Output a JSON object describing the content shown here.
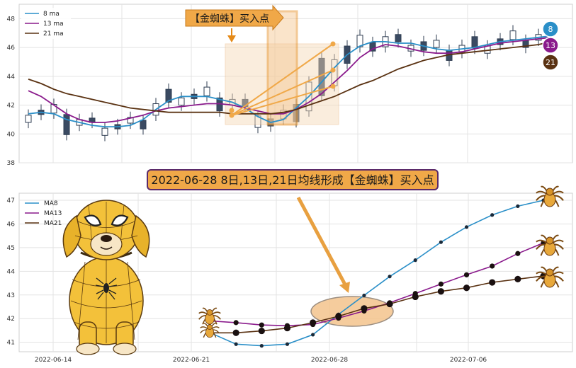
{
  "chart_data": [
    {
      "type": "line",
      "title": "",
      "xlabel": "",
      "ylabel": "",
      "ylim": [
        38,
        49
      ],
      "yticks": [
        38,
        40,
        42,
        44,
        46,
        48
      ],
      "grid": true,
      "legend_placement": "top-left",
      "candlesticks_shown": true,
      "series": [
        {
          "name": "8 ma",
          "color": "#2a8fc8",
          "values": [
            41.4,
            41.5,
            41.4,
            41.0,
            40.8,
            40.6,
            40.5,
            40.5,
            40.6,
            41.0,
            41.7,
            42.3,
            42.6,
            42.6,
            42.6,
            42.4,
            42.2,
            41.8,
            41.2,
            40.8,
            41.0,
            41.8,
            42.6,
            43.6,
            44.6,
            45.5,
            46.1,
            46.4,
            46.4,
            46.3,
            46.3,
            46.1,
            45.9,
            45.8,
            45.9,
            46.0,
            46.2,
            46.4,
            46.5,
            46.6,
            46.7,
            46.8
          ]
        },
        {
          "name": "13 ma",
          "color": "#8a1a8c",
          "values": [
            43.0,
            42.6,
            42.0,
            41.4,
            41.0,
            40.8,
            40.8,
            40.9,
            41.1,
            41.3,
            41.6,
            41.8,
            41.9,
            42.0,
            42.1,
            42.1,
            42.0,
            41.8,
            41.6,
            41.4,
            41.4,
            41.7,
            42.2,
            42.8,
            43.6,
            44.4,
            45.3,
            45.9,
            46.2,
            46.1,
            45.9,
            45.7,
            45.6,
            45.6,
            45.7,
            45.9,
            46.1,
            46.3,
            46.4,
            46.5,
            46.6,
            46.7
          ]
        },
        {
          "name": "21 ma",
          "color": "#5a3212",
          "values": [
            43.8,
            43.5,
            43.1,
            42.8,
            42.6,
            42.4,
            42.2,
            42.0,
            41.8,
            41.7,
            41.6,
            41.5,
            41.5,
            41.5,
            41.5,
            41.5,
            41.4,
            41.4,
            41.4,
            41.4,
            41.5,
            41.7,
            42.0,
            42.3,
            42.6,
            43.0,
            43.4,
            43.7,
            44.1,
            44.5,
            44.8,
            45.1,
            45.3,
            45.5,
            45.6,
            45.7,
            45.8,
            45.9,
            46.0,
            46.1,
            46.2,
            46.4
          ]
        }
      ],
      "end_badges": [
        "8",
        "13",
        "21"
      ],
      "callout_label": "【金蜘蛛】买入点"
    },
    {
      "type": "line",
      "title": "",
      "xlabel": "",
      "ylabel": "",
      "ylim": [
        40.6,
        47.3
      ],
      "yticks": [
        41,
        42,
        43,
        44,
        45,
        46,
        47
      ],
      "xticks": [
        "2022-06-14",
        "2022-06-21",
        "2022-06-28",
        "2022-07-06"
      ],
      "grid": true,
      "legend_placement": "top-left",
      "x": [
        "2022-06-21",
        "2022-06-22",
        "2022-06-23",
        "2022-06-24",
        "2022-06-27",
        "2022-06-28",
        "2022-06-29",
        "2022-06-30",
        "2022-07-01",
        "2022-07-04",
        "2022-07-05",
        "2022-07-06",
        "2022-07-07",
        "2022-07-08"
      ],
      "series": [
        {
          "name": "MA8",
          "color": "#2a8fc8",
          "values": [
            41.4,
            40.92,
            40.85,
            40.92,
            41.32,
            42.18,
            42.98,
            43.78,
            44.47,
            45.23,
            45.87,
            46.38,
            46.75,
            47.0
          ]
        },
        {
          "name": "MA13",
          "color": "#8a1a8c",
          "values": [
            41.9,
            41.83,
            41.73,
            41.7,
            41.75,
            42.02,
            42.32,
            42.67,
            43.06,
            43.46,
            43.85,
            44.22,
            44.75,
            45.2
          ]
        },
        {
          "name": "MA21",
          "color": "#5a3212",
          "values": [
            41.4,
            41.4,
            41.48,
            41.6,
            41.83,
            42.1,
            42.43,
            42.62,
            42.92,
            43.15,
            43.3,
            43.53,
            43.67,
            43.8
          ]
        }
      ],
      "annotation": "2022-06-28 8日,13日,21日均线形成【金蜘蛛】买入点"
    }
  ]
}
